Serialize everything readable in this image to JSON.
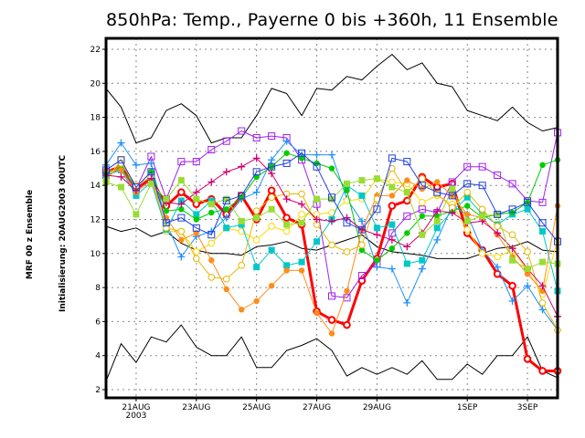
{
  "chart_data": {
    "type": "line",
    "title": "850hPa: Temp., Payerne 0 bis +360h, 11 Ensemble",
    "ylabel_lines": [
      "MRF 00 z Ensemble",
      "Initialisierung: 20AUG2003  00UTC"
    ],
    "xlabel": "",
    "ylim": [
      2,
      22
    ],
    "yticks": [
      2,
      4,
      6,
      8,
      10,
      12,
      14,
      16,
      18,
      20,
      22
    ],
    "ytick_labels": [
      "2",
      "4",
      "6",
      "8",
      "10",
      "12",
      "14",
      "16",
      "18",
      "20",
      "22"
    ],
    "x_start": "2003-08-20 00UTC",
    "x_step_hours": 12,
    "x_count": 31,
    "xticks": [
      {
        "index": 2,
        "label": "21AUG",
        "sublabel": "2003"
      },
      {
        "index": 6,
        "label": "23AUG",
        "sublabel": ""
      },
      {
        "index": 10,
        "label": "25AUG",
        "sublabel": ""
      },
      {
        "index": 14,
        "label": "27AUG",
        "sublabel": ""
      },
      {
        "index": 18,
        "label": "29AUG",
        "sublabel": ""
      },
      {
        "index": 24,
        "label": "1SEP",
        "sublabel": ""
      },
      {
        "index": 28,
        "label": "3SEP",
        "sublabel": ""
      }
    ],
    "grid": true,
    "series": [
      {
        "name": "max",
        "color": "#000000",
        "marker": "none",
        "width": 1,
        "values": [
          19.7,
          18.6,
          16.5,
          16.8,
          18.4,
          18.8,
          18.1,
          16.5,
          16.8,
          16.8,
          18.1,
          19.7,
          19.4,
          18.1,
          19.7,
          19.6,
          20.4,
          20.2,
          21.0,
          21.7,
          20.8,
          21.2,
          20.0,
          19.8,
          18.4,
          18.1,
          17.8,
          18.6,
          17.7,
          17.2,
          17.4
        ]
      },
      {
        "name": "mean",
        "color": "#000000",
        "marker": "none",
        "width": 1,
        "values": [
          11.6,
          11.3,
          11.5,
          11.0,
          11.3,
          10.6,
          10.2,
          10.0,
          10.0,
          9.9,
          10.4,
          10.5,
          10.7,
          10.3,
          10.2,
          10.5,
          10.8,
          11.1,
          10.4,
          10.1,
          10.0,
          9.9,
          9.7,
          9.7,
          9.7,
          10.0,
          10.3,
          10.4,
          10.7,
          10.2,
          10.1
        ]
      },
      {
        "name": "min",
        "color": "#000000",
        "marker": "none",
        "width": 1,
        "values": [
          2.5,
          4.7,
          3.6,
          5.1,
          4.8,
          5.8,
          4.5,
          4.0,
          4.0,
          5.1,
          3.3,
          3.3,
          4.3,
          4.6,
          5.0,
          4.3,
          2.8,
          3.3,
          2.9,
          3.3,
          2.9,
          3.7,
          2.6,
          2.6,
          3.5,
          2.9,
          4.0,
          4.0,
          5.1,
          3.1,
          2.7
        ]
      },
      {
        "name": "control",
        "color": "#ff0000",
        "marker": "open-circle",
        "width": 3,
        "values": [
          14.8,
          15.1,
          13.8,
          14.4,
          12.8,
          13.6,
          12.9,
          13.2,
          12.3,
          13.4,
          12.0,
          13.7,
          12.1,
          11.7,
          6.6,
          6.1,
          5.8,
          8.4,
          9.7,
          12.8,
          13.1,
          14.5,
          13.9,
          14.1,
          11.2,
          10.2,
          8.8,
          8.1,
          3.8,
          3.1,
          3.1
        ]
      },
      {
        "name": "ens-01",
        "color": "#a020f0",
        "marker": "open-square",
        "width": 1,
        "values": [
          14.6,
          15.0,
          13.8,
          15.7,
          13.2,
          15.4,
          15.4,
          16.1,
          16.6,
          17.2,
          16.8,
          16.9,
          16.8,
          15.5,
          12.9,
          7.5,
          7.4,
          8.7,
          9.4,
          11.2,
          12.2,
          12.6,
          12.4,
          14.2,
          15.1,
          15.1,
          14.6,
          14.1,
          13.1,
          13.0,
          17.1
        ]
      },
      {
        "name": "ens-02",
        "color": "#1e90ff",
        "marker": "plus",
        "width": 1,
        "values": [
          15.2,
          16.5,
          15.2,
          15.3,
          11.8,
          9.8,
          11.0,
          11.3,
          12.1,
          13.2,
          13.6,
          15.5,
          16.6,
          15.8,
          15.8,
          15.8,
          13.2,
          11.9,
          9.2,
          9.1,
          7.1,
          9.1,
          10.8,
          12.8,
          12.3,
          10.2,
          9.2,
          7.2,
          8.1,
          6.7,
          5.5
        ]
      },
      {
        "name": "ens-03",
        "color": "#ffd700",
        "marker": "open-circle",
        "width": 1,
        "values": [
          14.3,
          15.5,
          13.7,
          14.4,
          11.3,
          11.3,
          10.1,
          10.6,
          11.5,
          11.3,
          10.8,
          11.6,
          11.3,
          12.3,
          12.3,
          12.4,
          13.1,
          13.2,
          14.4,
          14.2,
          14.1,
          13.0,
          13.4,
          12.9,
          11.4,
          10.0,
          9.8,
          10.2,
          9.0,
          7.6,
          10.8
        ]
      },
      {
        "name": "ens-04",
        "color": "#00c8c8",
        "marker": "filled-square",
        "width": 1,
        "values": [
          14.6,
          14.9,
          13.4,
          14.2,
          11.4,
          13.1,
          12.3,
          13.1,
          11.5,
          11.7,
          9.2,
          10.2,
          9.3,
          9.5,
          10.7,
          12.0,
          14.0,
          13.4,
          11.5,
          11.7,
          9.4,
          9.6,
          11.5,
          12.5,
          13.3,
          12.3,
          11.7,
          12.3,
          12.6,
          11.3,
          7.8
        ]
      },
      {
        "name": "ens-05",
        "color": "#00cc00",
        "marker": "filled-circle",
        "width": 1,
        "values": [
          14.8,
          15.0,
          13.9,
          14.8,
          12.5,
          12.6,
          12.0,
          12.4,
          12.6,
          13.3,
          14.5,
          15.1,
          15.9,
          15.6,
          15.3,
          15.0,
          13.7,
          10.2,
          9.6,
          10.3,
          11.2,
          12.2,
          12.2,
          12.5,
          12.8,
          12.1,
          12.3,
          12.4,
          13.0,
          15.2,
          15.5
        ]
      },
      {
        "name": "ens-06",
        "color": "#ff8c1a",
        "marker": "filled-circle",
        "width": 1,
        "values": [
          14.9,
          14.9,
          13.6,
          14.3,
          12.1,
          10.8,
          11.2,
          9.6,
          7.9,
          6.7,
          7.2,
          8.1,
          9.0,
          9.0,
          6.5,
          5.3,
          7.8,
          11.4,
          13.4,
          13.4,
          14.3,
          13.8,
          14.2,
          13.4,
          12.3,
          12.1,
          11.1,
          9.8,
          8.8,
          7.8,
          12.8
        ]
      },
      {
        "name": "ens-07",
        "color": "#e6b800",
        "marker": "open-circle",
        "width": 1,
        "values": [
          14.3,
          15.3,
          14.0,
          14.5,
          11.5,
          11.3,
          9.7,
          8.6,
          8.5,
          9.3,
          12.5,
          13.3,
          13.5,
          13.5,
          11.7,
          10.5,
          10.1,
          10.5,
          13.2,
          15.0,
          13.6,
          14.4,
          13.5,
          12.7,
          13.6,
          12.6,
          11.6,
          11.1,
          10.1,
          7.1,
          5.5
        ]
      },
      {
        "name": "ens-08",
        "color": "#d00070",
        "marker": "plus",
        "width": 1,
        "values": [
          14.6,
          14.5,
          13.7,
          14.4,
          13.0,
          12.9,
          13.6,
          14.2,
          14.8,
          15.1,
          15.6,
          14.7,
          13.2,
          12.9,
          12.0,
          11.9,
          12.1,
          11.4,
          11.1,
          10.8,
          10.4,
          11.2,
          12.5,
          12.4,
          11.8,
          11.9,
          11.2,
          10.3,
          9.1,
          8.1,
          6.3
        ]
      },
      {
        "name": "ens-09",
        "color": "#99dd33",
        "marker": "filled-square",
        "width": 1,
        "values": [
          14.2,
          13.9,
          12.3,
          14.1,
          13.2,
          14.3,
          13.2,
          12.9,
          13.2,
          11.9,
          12.1,
          12.6,
          11.7,
          11.8,
          13.2,
          13.2,
          14.1,
          14.3,
          14.4,
          13.9,
          13.6,
          11.1,
          11.9,
          13.8,
          11.9,
          12.2,
          12.3,
          9.6,
          9.1,
          9.5,
          9.4
        ]
      },
      {
        "name": "ens-10",
        "color": "#2040e0",
        "marker": "open-square",
        "width": 1,
        "values": [
          14.9,
          15.5,
          13.9,
          14.8,
          11.8,
          12.1,
          11.5,
          11.1,
          13.1,
          13.4,
          14.8,
          15.1,
          15.3,
          15.9,
          15.1,
          13.3,
          11.8,
          11.4,
          12.6,
          15.6,
          15.4,
          14.0,
          13.6,
          13.4,
          14.1,
          14.0,
          12.3,
          12.6,
          13.0,
          11.8,
          10.7
        ]
      }
    ]
  }
}
